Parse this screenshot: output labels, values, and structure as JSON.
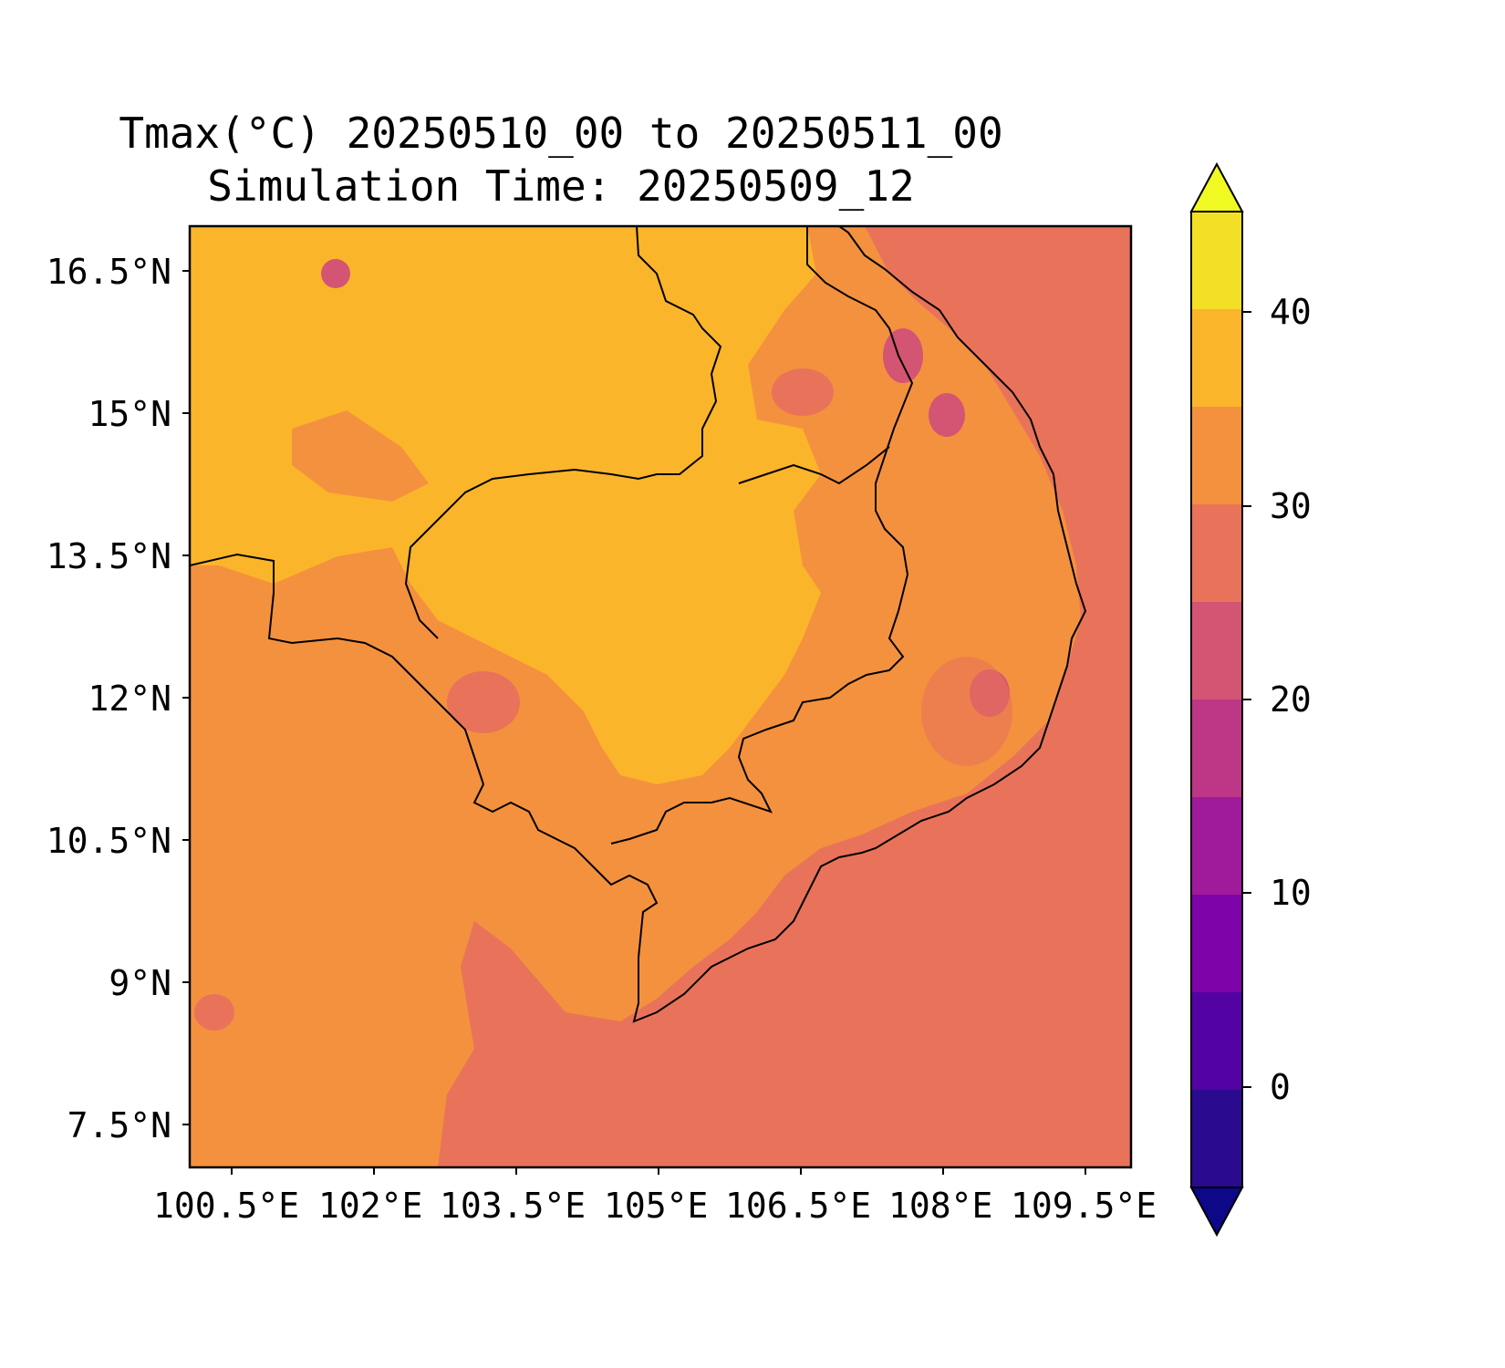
{
  "title": {
    "line1": "Tmax(°C) 20250510_00 to 20250511_00",
    "line2": "Simulation Time: 20250509_12"
  },
  "map": {
    "lat_ticks": [
      "16.5°N",
      "15°N",
      "13.5°N",
      "12°N",
      "10.5°N",
      "9°N",
      "7.5°N"
    ],
    "lon_ticks": [
      "100.5°E",
      "102°E",
      "103.5°E",
      "105°E",
      "106.5°E",
      "108°E",
      "109.5°E"
    ],
    "colors": {
      "band_25_30": "#e8735a",
      "band_30_35": "#f4913e",
      "band_35_40": "#fbb52b",
      "band_20_25": "#d45473",
      "band_15_20": "#bd3786",
      "coastline": "#000000"
    }
  },
  "colorbar": {
    "ticks": [
      "40",
      "30",
      "20",
      "10",
      "0"
    ],
    "extend": "both",
    "bands": [
      {
        "range": "<-5",
        "color": "#0d0887"
      },
      {
        "range": "-5–0",
        "color": "#2a0a8e"
      },
      {
        "range": "0–5",
        "color": "#5302a3"
      },
      {
        "range": "5–10",
        "color": "#7e03a8"
      },
      {
        "range": "10–15",
        "color": "#a01a9c"
      },
      {
        "range": "15–20",
        "color": "#bd3786"
      },
      {
        "range": "20–25",
        "color": "#d45473"
      },
      {
        "range": "25–30",
        "color": "#e8735a"
      },
      {
        "range": "30–35",
        "color": "#f4913e"
      },
      {
        "range": "35–40",
        "color": "#fbb52b"
      },
      {
        "range": "40–45",
        "color": "#f3e026"
      },
      {
        "range": ">45",
        "color": "#f0f921"
      }
    ]
  }
}
